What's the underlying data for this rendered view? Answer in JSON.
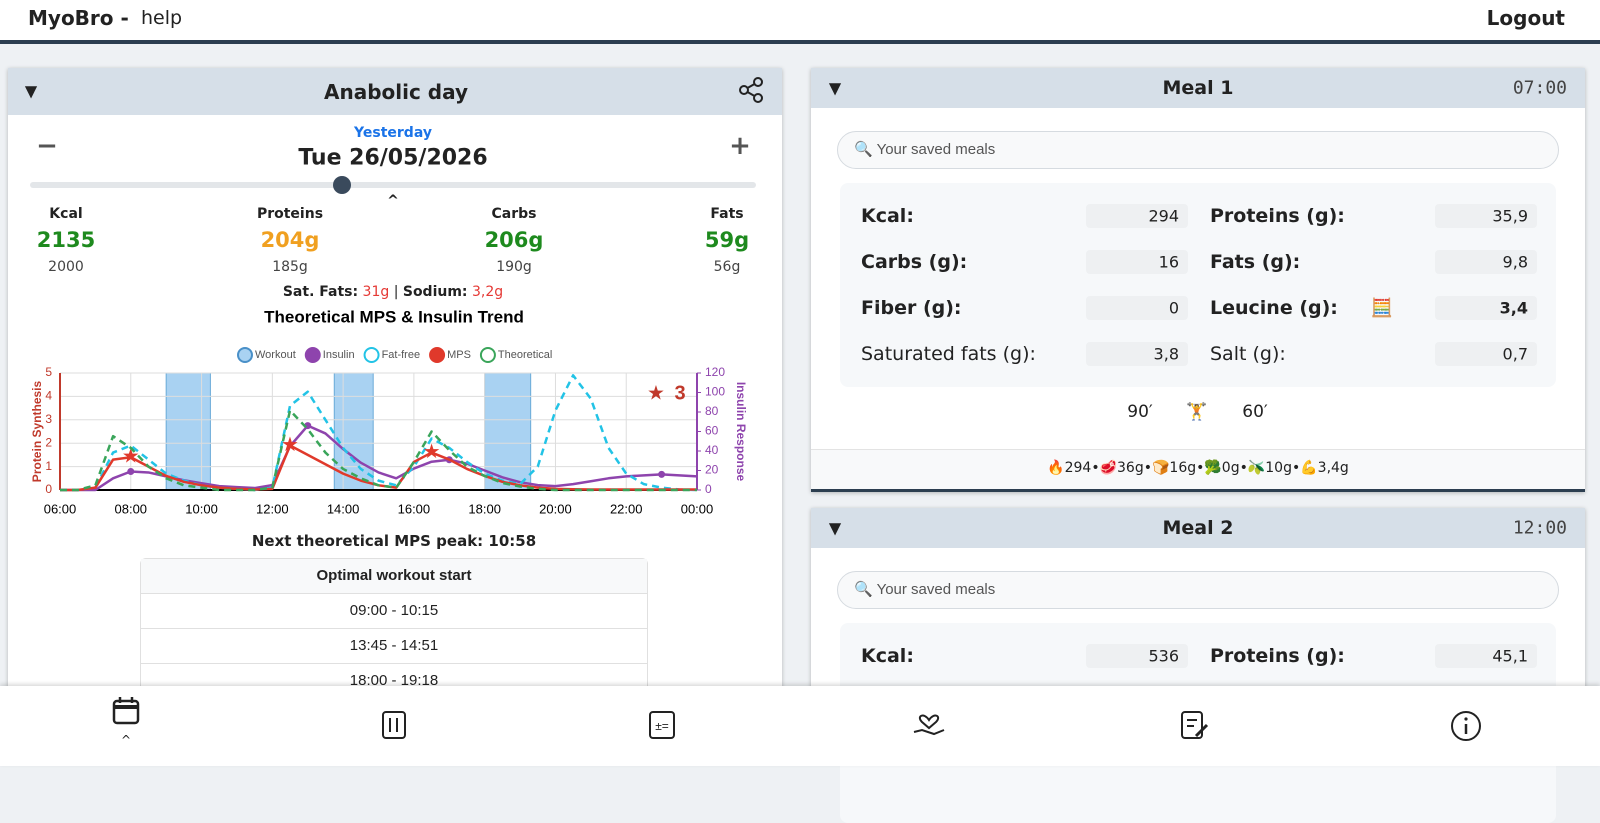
{
  "header": {
    "brand": "MyoBro -",
    "section": "help",
    "logout": "Logout"
  },
  "day": {
    "title": "Anabolic day",
    "relative": "Yesterday",
    "date": "Tue 26/05/2026",
    "minus": "−",
    "plus": "+",
    "caret": "^",
    "macros": [
      {
        "label": "Kcal",
        "value": "2135",
        "target": "2000",
        "color": "#1e8a1e"
      },
      {
        "label": "Proteins",
        "value": "204g",
        "target": "185g",
        "color": "#f0a020"
      },
      {
        "label": "Carbs",
        "value": "206g",
        "target": "190g",
        "color": "#1e8a1e"
      },
      {
        "label": "Fats",
        "value": "59g",
        "target": "56g",
        "color": "#1e8a1e"
      }
    ],
    "sat_fats_label": "Sat. Fats:",
    "sat_fats": "31g",
    "separator": "|",
    "sodium_label": "Sodium:",
    "sodium": "3,2g"
  },
  "chart_data": {
    "type": "line",
    "title": "Theoretical MPS & Insulin Trend",
    "ylabel": "Protein Synthesis",
    "y2label": "Insulin Response",
    "x": [
      6,
      6.5,
      7,
      7.5,
      8,
      8.5,
      9,
      9.5,
      10,
      10.5,
      11,
      11.5,
      12,
      12.5,
      13,
      13.5,
      14,
      14.5,
      15,
      15.5,
      16,
      16.5,
      17,
      17.5,
      18,
      18.5,
      19,
      19.5,
      20,
      20.5,
      21,
      21.5,
      22,
      22.5,
      23,
      23.5,
      24
    ],
    "xlim": [
      6,
      24
    ],
    "xticks": [
      {
        "value": 6,
        "label": "06:00"
      },
      {
        "value": 8,
        "label": "08:00"
      },
      {
        "value": 10,
        "label": "10:00"
      },
      {
        "value": 12,
        "label": "12:00"
      },
      {
        "value": 14,
        "label": "14:00"
      },
      {
        "value": 16,
        "label": "16:00"
      },
      {
        "value": 18,
        "label": "18:00"
      },
      {
        "value": 20,
        "label": "20:00"
      },
      {
        "value": 22,
        "label": "22:00"
      },
      {
        "value": 24,
        "label": "00:00"
      }
    ],
    "ylim": [
      0,
      5
    ],
    "yticks": [
      0,
      1,
      2,
      3,
      4,
      5
    ],
    "y2lim": [
      0,
      120
    ],
    "y2ticks": [
      0,
      20,
      40,
      60,
      80,
      100,
      120
    ],
    "grid": true,
    "workout": {
      "name": "Workout",
      "color": "#a9d2f2",
      "ranges": [
        [
          9,
          10.25
        ],
        [
          13.75,
          14.85
        ],
        [
          18,
          19.3
        ]
      ]
    },
    "series": [
      {
        "name": "Insulin",
        "color": "#8e44ad",
        "axis": "y2",
        "dashed": false,
        "values": [
          0,
          0,
          0,
          12,
          19,
          18,
          14,
          10,
          7,
          4,
          3,
          2,
          5,
          45,
          66,
          58,
          42,
          28,
          18,
          12,
          22,
          29,
          31,
          27,
          20,
          13,
          8,
          5,
          4,
          6,
          9,
          12,
          14,
          15,
          16,
          15,
          14
        ]
      },
      {
        "name": "Fat-free",
        "color": "#22c3e6",
        "dashed": true,
        "values": [
          0,
          0,
          0.1,
          1.6,
          1.9,
          1.3,
          0.7,
          0.4,
          0.2,
          0.1,
          0.05,
          0,
          0.1,
          3.6,
          4.2,
          3,
          1.8,
          0.9,
          0.4,
          0.2,
          1,
          2.2,
          1.8,
          1.2,
          0.7,
          0.4,
          0.25,
          1,
          3.4,
          4.9,
          3.9,
          1.8,
          0.7,
          0.25,
          0.1,
          0.02,
          0
        ]
      },
      {
        "name": "MPS",
        "color": "#e0392b",
        "dashed": false,
        "values": [
          0,
          0,
          0.1,
          1.3,
          1.4,
          1,
          0.6,
          0.35,
          0.2,
          0.1,
          0.05,
          0.02,
          0.05,
          1.9,
          1.5,
          1.1,
          0.7,
          0.4,
          0.2,
          0.1,
          1.2,
          1.6,
          1.3,
          0.9,
          0.6,
          0.35,
          0.2,
          0.1,
          0.05,
          0.03,
          0.02,
          0.02,
          0.02,
          0.02,
          0.02,
          0.02,
          0.02
        ]
      },
      {
        "name": "Theoretical",
        "color": "#3aa55a",
        "dashed": true,
        "values": [
          0,
          0,
          0.2,
          2.3,
          1.8,
          1,
          0.5,
          0.2,
          0.1,
          0,
          0,
          0,
          0.1,
          3.4,
          2.6,
          1.6,
          0.9,
          0.5,
          0.2,
          0.1,
          1.2,
          2.5,
          1.7,
          1,
          0.6,
          0.3,
          0.15,
          0.05,
          0,
          0,
          0,
          0,
          0,
          0,
          0,
          0,
          0
        ]
      }
    ],
    "annotation": {
      "icon": "★",
      "count": 3
    }
  },
  "next_peak": "Next theoretical MPS peak: 10:58",
  "workout_table": {
    "header": "Optimal workout start",
    "rows": [
      "09:00 - 10:15",
      "13:45 - 14:51",
      "18:00 - 19:18"
    ]
  },
  "meals": [
    {
      "title": "Meal 1",
      "time": "07:00",
      "search": "🔍 Your saved meals",
      "fields": [
        [
          "Kcal:",
          "294"
        ],
        [
          "Proteins (g):",
          "35,9"
        ],
        [
          "Carbs (g):",
          "16"
        ],
        [
          "Fats (g):",
          "9,8"
        ],
        [
          "Fiber (g):",
          "0"
        ],
        [
          "Leucine (g):",
          "3,4"
        ],
        [
          "Saturated fats (g):",
          "3,8"
        ],
        [
          "Salt (g):",
          "0,7"
        ]
      ],
      "leucine_icon": "🧮",
      "timing": [
        "90′",
        "🏋",
        "60′"
      ],
      "summary": "🔥294•🥩36g•🍞16g•🥦0g•🫒10g•💪3,4g"
    },
    {
      "title": "Meal 2",
      "time": "12:00",
      "search": "🔍 Your saved meals",
      "fields": [
        [
          "Kcal:",
          "536"
        ],
        [
          "Proteins (g):",
          "45,1"
        ]
      ]
    }
  ]
}
